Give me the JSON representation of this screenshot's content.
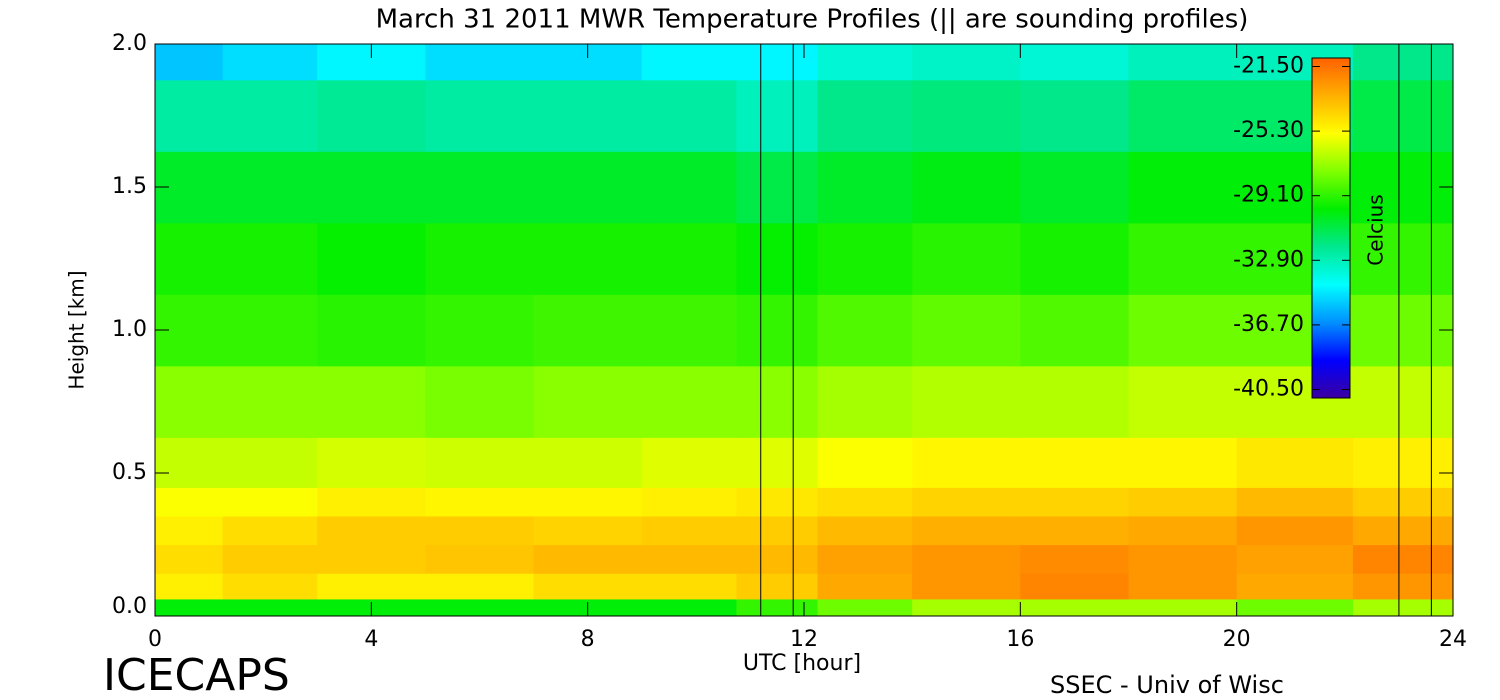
{
  "chart_data": {
    "type": "contour",
    "title": "March 31 2011 MWR Temperature Profiles (|| are sounding profiles)",
    "x_label": "UTC [hour]",
    "y_label": "Height [km]",
    "colorbar_label": "Celcius",
    "left_footer": "ICECAPS",
    "right_footer": "SSEC - Univ of Wisc",
    "xlim": [
      0,
      24
    ],
    "xticks": [
      0,
      4,
      8,
      12,
      16,
      20,
      24
    ],
    "ylim": [
      0,
      2
    ],
    "yticks": [
      {
        "value": 0,
        "label": "0.0"
      },
      {
        "value": 0.5,
        "label": "0.5"
      },
      {
        "value": 1,
        "label": "1.0"
      },
      {
        "value": 1.5,
        "label": "1.5"
      },
      {
        "value": 2,
        "label": "2.0"
      }
    ],
    "zlim": [
      -41,
      -21
    ],
    "zticks": [
      {
        "value": -21.5,
        "label": "-21.50"
      },
      {
        "value": -25.3,
        "label": "-25.30"
      },
      {
        "value": -29.1,
        "label": "-29.10"
      },
      {
        "value": -32.9,
        "label": "-32.90"
      },
      {
        "value": -36.7,
        "label": "-36.70"
      },
      {
        "value": -40.5,
        "label": "-40.50"
      }
    ],
    "colormap": [
      "#3a00a0",
      "#0000ff",
      "#0090ff",
      "#00ffff",
      "#00e890",
      "#00ee00",
      "#80ff00",
      "#ffff00",
      "#ffb000",
      "#ff6000"
    ],
    "sounding_times": [
      11.2,
      11.8,
      23.0,
      23.6
    ],
    "x": [
      0.5,
      2,
      4,
      6,
      8,
      10,
      11.5,
      13,
      15,
      17,
      19,
      21,
      23.3
    ],
    "y": [
      0.02,
      0.1,
      0.2,
      0.3,
      0.4,
      0.5,
      0.75,
      1.0,
      1.25,
      1.5,
      1.75,
      2.0
    ],
    "z": [
      [
        -30,
        -30,
        -30,
        -30,
        -30,
        -30,
        -29,
        -28,
        -27,
        -27,
        -27,
        -28,
        -27
      ],
      [
        -25,
        -24.5,
        -25,
        -25,
        -24.5,
        -24.5,
        -24,
        -23,
        -22.5,
        -22,
        -22.5,
        -23,
        -22.5
      ],
      [
        -24.5,
        -24,
        -24,
        -23.8,
        -23.5,
        -23.5,
        -23.5,
        -22.8,
        -22.5,
        -22.2,
        -22.5,
        -22.8,
        -22
      ],
      [
        -25,
        -24.5,
        -24,
        -24,
        -24.2,
        -24,
        -24,
        -23.5,
        -23.2,
        -23.2,
        -23,
        -22.5,
        -23
      ],
      [
        -25.5,
        -25.5,
        -25,
        -25.2,
        -25.2,
        -25,
        -24.8,
        -24.5,
        -24.2,
        -24.2,
        -24,
        -23.5,
        -24
      ],
      [
        -26.5,
        -26.5,
        -26.2,
        -26.3,
        -26.3,
        -26,
        -26,
        -25.5,
        -25.2,
        -25.2,
        -25.2,
        -24.8,
        -25
      ],
      [
        -27.5,
        -27.5,
        -27.5,
        -27.8,
        -27.5,
        -27.5,
        -27.5,
        -27,
        -26.8,
        -26.8,
        -26.5,
        -26.5,
        -26.5
      ],
      [
        -29,
        -29,
        -29.2,
        -29,
        -28.8,
        -28.8,
        -29,
        -28.5,
        -28.2,
        -28.5,
        -28,
        -28,
        -28
      ],
      [
        -29.5,
        -29.5,
        -29.8,
        -29.5,
        -29.5,
        -29.5,
        -29.8,
        -29.5,
        -29.2,
        -29.5,
        -29,
        -29,
        -29
      ],
      [
        -30.5,
        -30.5,
        -30.5,
        -30.5,
        -30.5,
        -30.5,
        -31,
        -30.5,
        -30.2,
        -30.5,
        -30,
        -30,
        -30
      ],
      [
        -32.5,
        -32.5,
        -32.2,
        -32.5,
        -32.5,
        -32.5,
        -33,
        -32,
        -31.8,
        -32,
        -31.5,
        -31.5,
        -31
      ],
      [
        -35.5,
        -35,
        -34.5,
        -35,
        -35,
        -34.5,
        -34.5,
        -33.5,
        -33.2,
        -33.5,
        -33,
        -33,
        -32
      ]
    ]
  }
}
